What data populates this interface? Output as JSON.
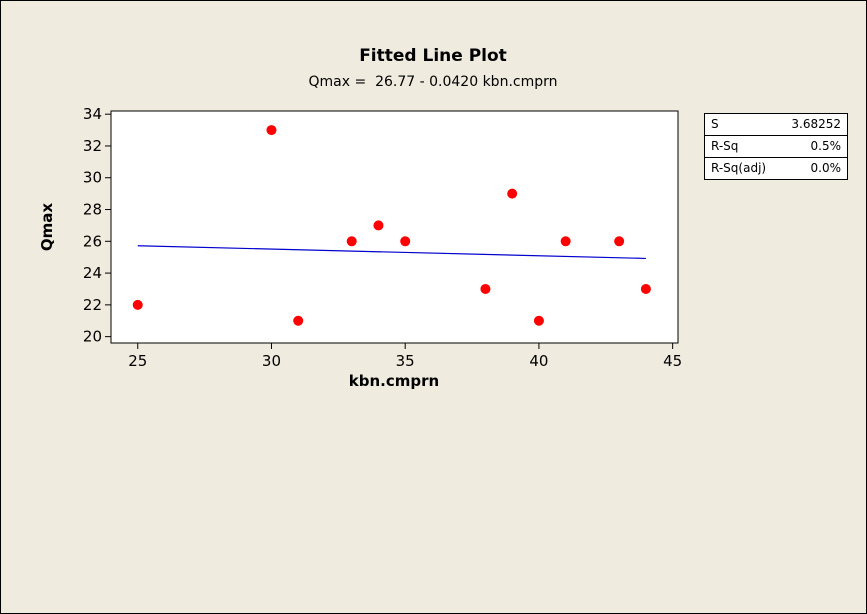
{
  "colors": {
    "background": "#efebdf",
    "plot_area": "#ffffff",
    "points": "#ff0000",
    "fit_line": "#0000cc",
    "text": "#000000"
  },
  "chart_data": {
    "type": "scatter",
    "title": "Fitted Line Plot",
    "subtitle": "Qmax =  26.77 - 0.0420 kbn.cmprn",
    "xlabel": "kbn.cmprn",
    "ylabel": "Qmax",
    "xlim": [
      24,
      45.2
    ],
    "ylim": [
      19.6,
      34.2
    ],
    "xticks": [
      25,
      30,
      35,
      40,
      45
    ],
    "yticks": [
      20,
      22,
      24,
      26,
      28,
      30,
      32,
      34
    ],
    "grid": false,
    "points": [
      {
        "x": 25,
        "y": 22
      },
      {
        "x": 30,
        "y": 33
      },
      {
        "x": 31,
        "y": 21
      },
      {
        "x": 33,
        "y": 26
      },
      {
        "x": 34,
        "y": 27
      },
      {
        "x": 35,
        "y": 26
      },
      {
        "x": 38,
        "y": 23
      },
      {
        "x": 39,
        "y": 29
      },
      {
        "x": 40,
        "y": 21
      },
      {
        "x": 41,
        "y": 26
      },
      {
        "x": 43,
        "y": 26
      },
      {
        "x": 44,
        "y": 23
      }
    ],
    "fit": {
      "intercept": 26.77,
      "slope": -0.042,
      "x_range": [
        25,
        44
      ]
    },
    "stats": [
      {
        "label": "S",
        "value": "3.68252"
      },
      {
        "label": "R-Sq",
        "value": "0.5%"
      },
      {
        "label": "R-Sq(adj)",
        "value": "0.0%"
      }
    ]
  }
}
